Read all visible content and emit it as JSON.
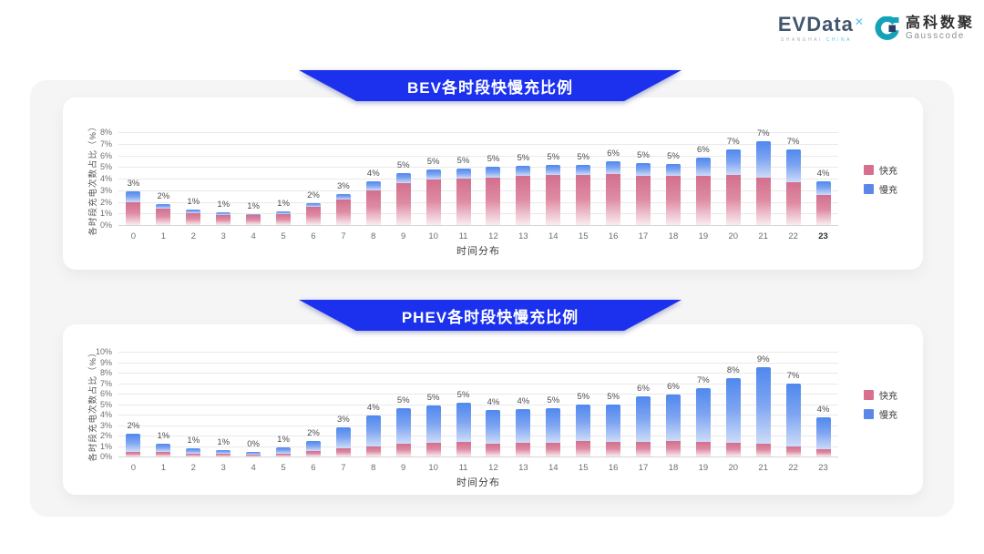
{
  "logo": {
    "brand": "EVData",
    "brand_mark": "✕",
    "brand_sub_left": "SHANGHAI",
    "brand_sub_right": "CHINA",
    "partner_cn": "高科数聚",
    "partner_en": "Gausscode",
    "brand_color": "#42566c",
    "accent_color": "#55c3ea",
    "icon_teal": "#14a2b8",
    "icon_navy": "#2a3f66"
  },
  "banner_color": "#1b31ee",
  "chart_data": [
    {
      "type": "bar",
      "stacked": true,
      "title": "BEV各时段快慢充比例",
      "xlabel": "时间分布",
      "ylabel": "各时段充电次数占比（%）",
      "ylim": [
        0,
        8
      ],
      "ytick_step": 1,
      "ytick_suffix": "%",
      "grid": true,
      "legend_position": "right",
      "bold_last_tick": true,
      "categories": [
        "0",
        "1",
        "2",
        "3",
        "4",
        "5",
        "6",
        "7",
        "8",
        "9",
        "10",
        "11",
        "12",
        "13",
        "14",
        "15",
        "16",
        "17",
        "18",
        "19",
        "20",
        "21",
        "22",
        "23"
      ],
      "series": [
        {
          "name": "快充",
          "key": "fast",
          "color": "#d96e8f",
          "gradient": [
            "#d26f8e",
            "#de8ba3",
            "#f9ecf0"
          ],
          "values": [
            2.0,
            1.4,
            1.0,
            0.9,
            0.85,
            0.95,
            1.6,
            2.2,
            3.0,
            3.6,
            3.9,
            4.0,
            4.1,
            4.2,
            4.35,
            4.3,
            4.4,
            4.25,
            4.2,
            4.25,
            4.3,
            4.1,
            3.7,
            2.6
          ]
        },
        {
          "name": "慢充",
          "key": "slow",
          "color": "#5b87e9",
          "gradient": [
            "#4f88ee",
            "#7da4f1",
            "#cddcf8"
          ],
          "values": [
            0.9,
            0.4,
            0.3,
            0.2,
            0.1,
            0.25,
            0.3,
            0.5,
            0.8,
            0.9,
            0.9,
            0.9,
            0.9,
            0.9,
            0.85,
            0.9,
            1.1,
            1.05,
            1.05,
            1.55,
            2.2,
            3.1,
            2.8,
            1.2
          ]
        }
      ],
      "bar_labels": [
        "3%",
        "2%",
        "1%",
        "1%",
        "1%",
        "1%",
        "2%",
        "3%",
        "4%",
        "5%",
        "5%",
        "5%",
        "5%",
        "5%",
        "5%",
        "5%",
        "6%",
        "5%",
        "5%",
        "6%",
        "7%",
        "7%",
        "7%",
        "4%"
      ]
    },
    {
      "type": "bar",
      "stacked": true,
      "title": "PHEV各时段快慢充比例",
      "xlabel": "时间分布",
      "ylabel": "各时段充电次数占比（%）",
      "ylim": [
        0,
        10
      ],
      "ytick_step": 1,
      "ytick_suffix": "%",
      "grid": true,
      "legend_position": "right",
      "bold_last_tick": false,
      "categories": [
        "0",
        "1",
        "2",
        "3",
        "4",
        "5",
        "6",
        "7",
        "8",
        "9",
        "10",
        "11",
        "12",
        "13",
        "14",
        "15",
        "16",
        "17",
        "18",
        "19",
        "20",
        "21",
        "22",
        "23"
      ],
      "series": [
        {
          "name": "快充",
          "key": "fast",
          "color": "#d96e8f",
          "gradient": [
            "#d26f8e",
            "#de8ba3",
            "#f9ecf0"
          ],
          "values": [
            0.45,
            0.4,
            0.3,
            0.25,
            0.2,
            0.3,
            0.55,
            0.75,
            0.95,
            1.2,
            1.3,
            1.4,
            1.2,
            1.3,
            1.3,
            1.5,
            1.4,
            1.4,
            1.5,
            1.4,
            1.3,
            1.2,
            1.0,
            0.7
          ]
        },
        {
          "name": "慢充",
          "key": "slow",
          "color": "#5b87e9",
          "gradient": [
            "#4f88ee",
            "#7da4f1",
            "#cddcf8"
          ],
          "values": [
            1.75,
            0.8,
            0.5,
            0.35,
            0.25,
            0.55,
            0.95,
            2.05,
            2.95,
            3.4,
            3.6,
            3.7,
            3.2,
            3.2,
            3.3,
            3.5,
            3.6,
            4.3,
            4.4,
            5.1,
            6.2,
            7.3,
            6.0,
            3.0
          ]
        }
      ],
      "bar_labels": [
        "2%",
        "1%",
        "1%",
        "1%",
        "0%",
        "1%",
        "2%",
        "3%",
        "4%",
        "5%",
        "5%",
        "5%",
        "4%",
        "4%",
        "5%",
        "5%",
        "5%",
        "6%",
        "6%",
        "7%",
        "8%",
        "9%",
        "7%",
        "4%"
      ]
    }
  ]
}
